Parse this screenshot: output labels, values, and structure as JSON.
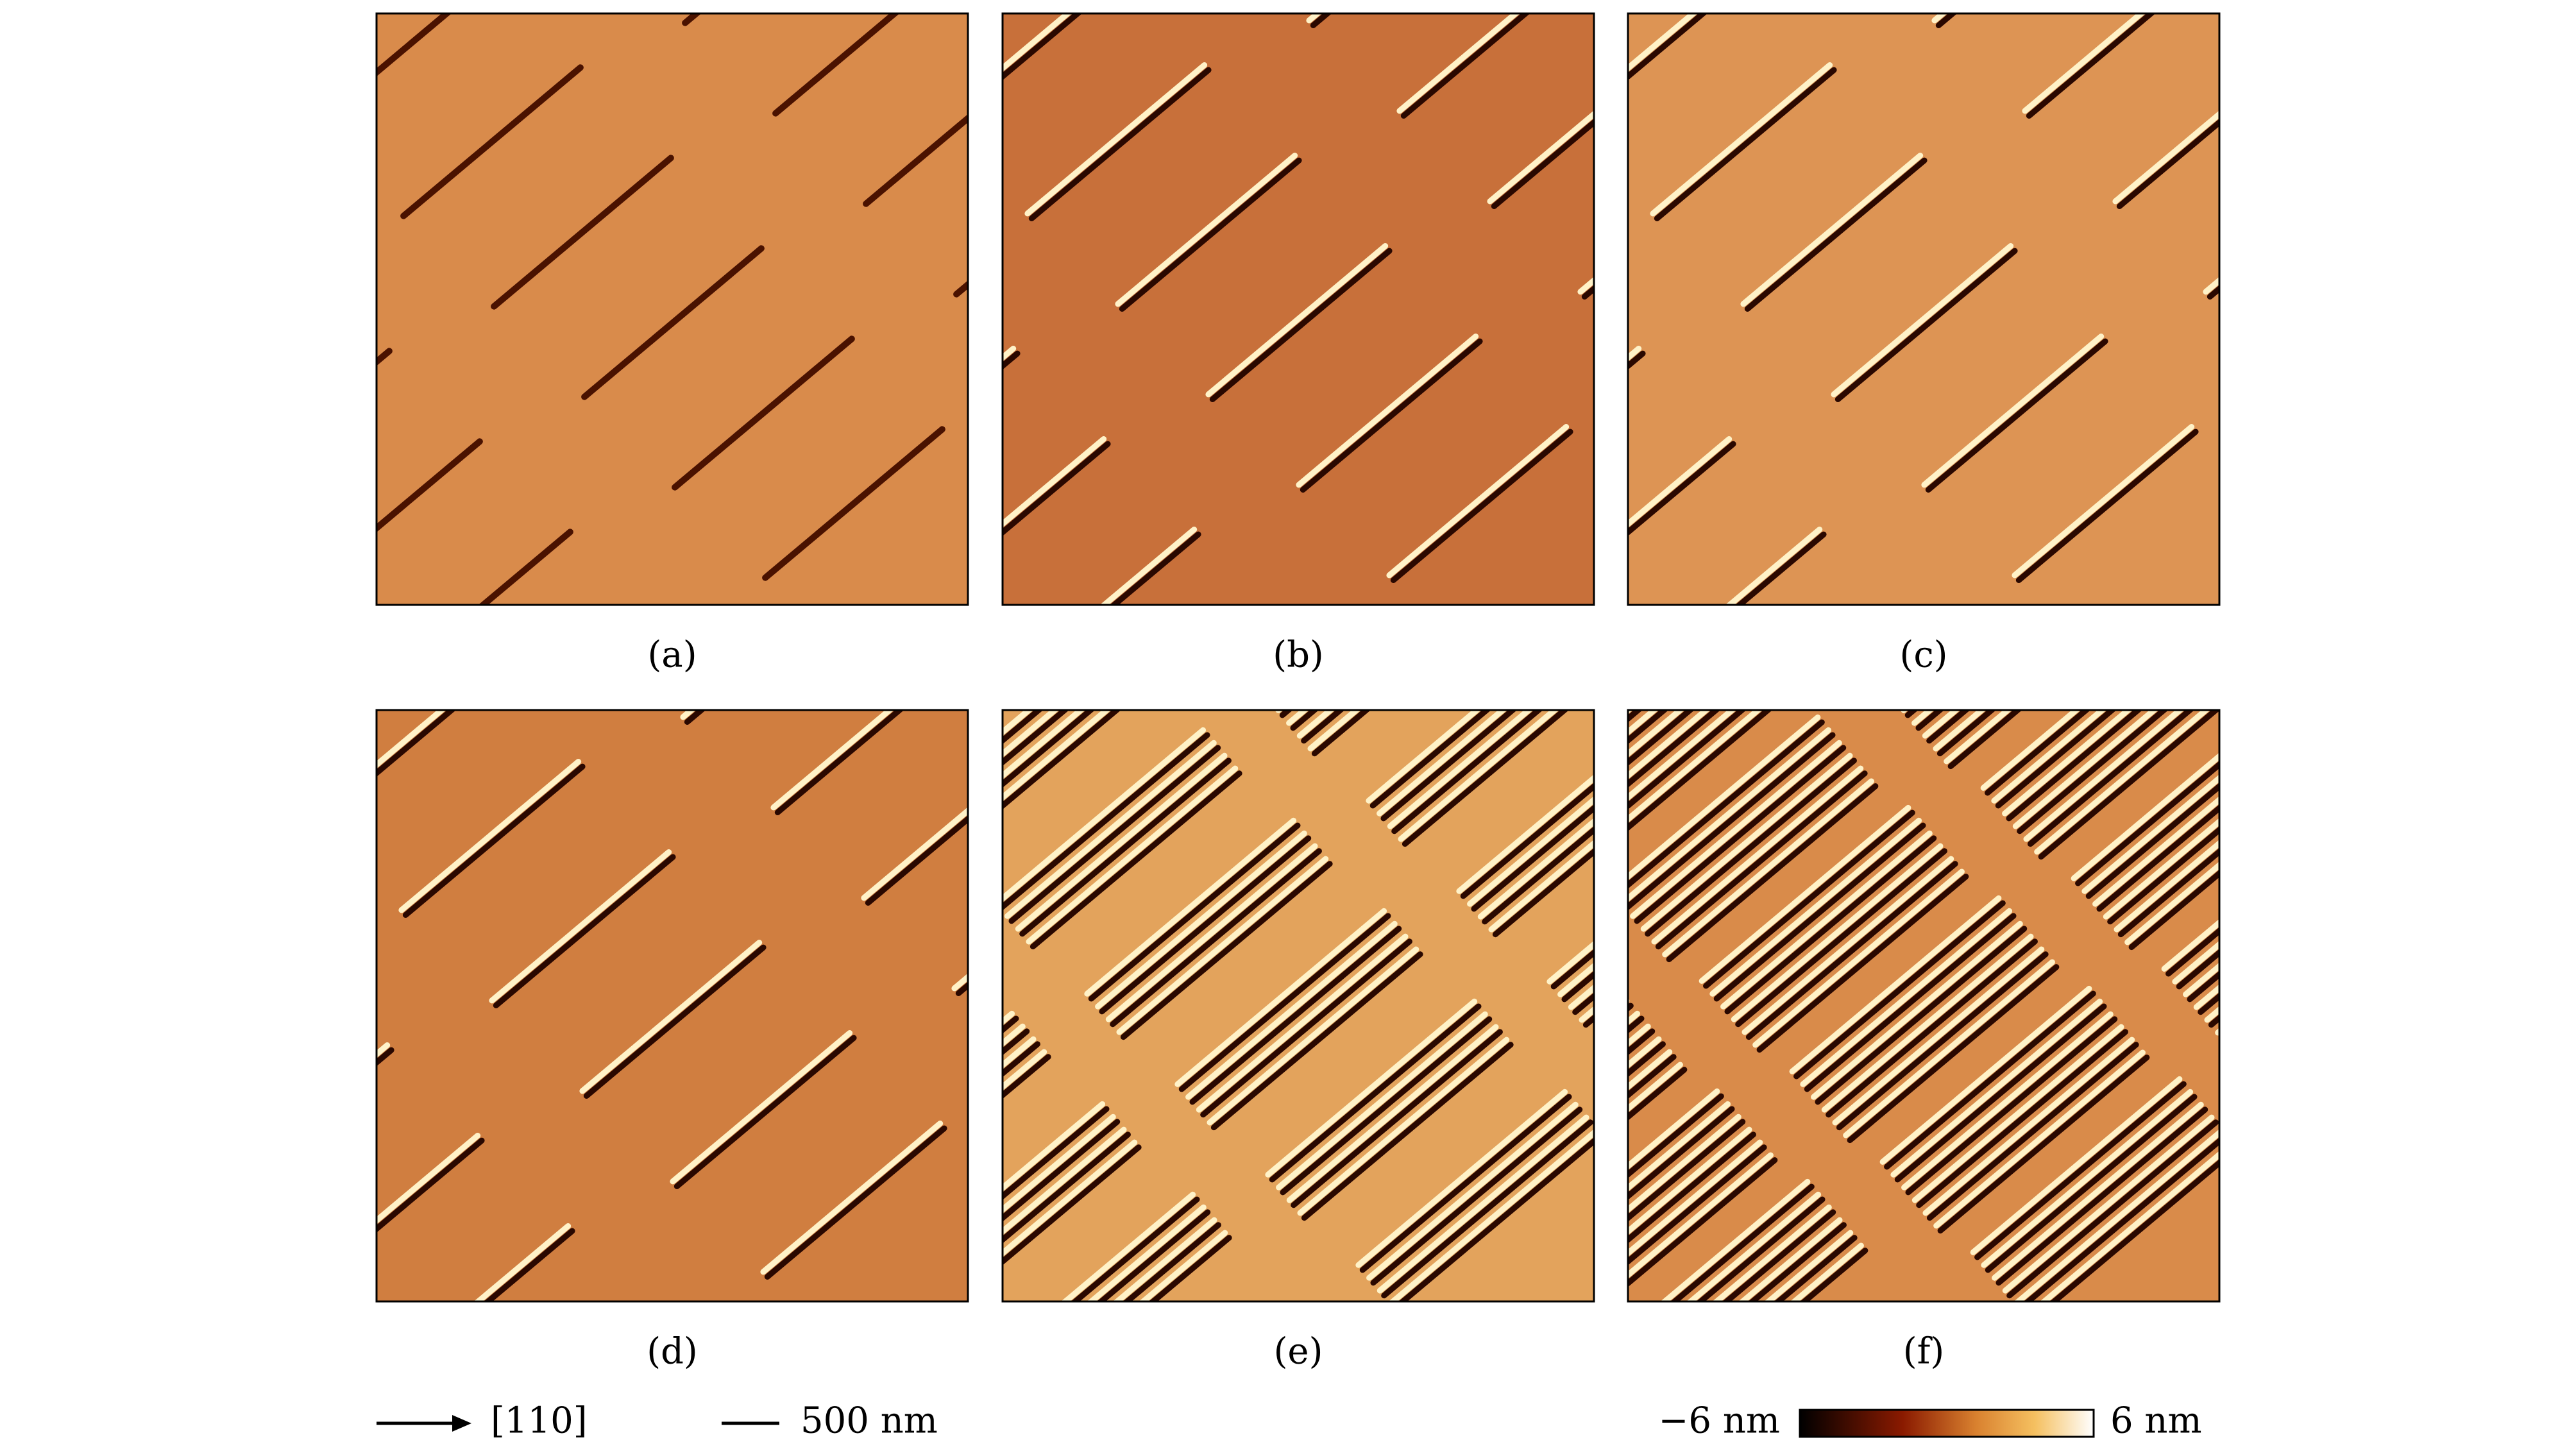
{
  "panels": [
    {
      "label": "(a)"
    },
    {
      "label": "(b)"
    },
    {
      "label": "(c)"
    },
    {
      "label": "(d)"
    },
    {
      "label": "(e)"
    },
    {
      "label": "(f)"
    }
  ],
  "legend": {
    "direction": "[110]",
    "scale_bar": "500 nm",
    "colorbar_min": "−6 nm",
    "colorbar_max": "6 nm"
  }
}
